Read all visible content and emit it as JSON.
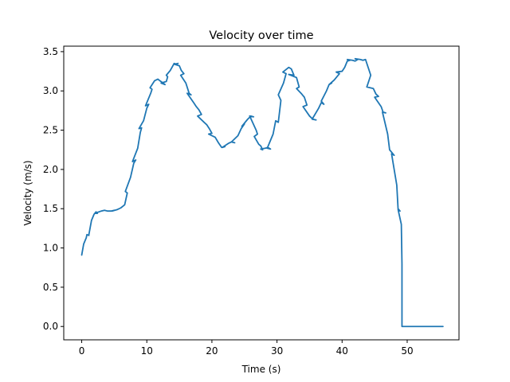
{
  "chart_data": {
    "type": "line",
    "title": "Velocity over time",
    "xlabel": "Time (s)",
    "ylabel": "Velocity (m/s)",
    "xlim": [
      -2.76,
      57.96
    ],
    "ylim": [
      -0.17,
      3.57
    ],
    "xticks": [
      0,
      10,
      20,
      30,
      40,
      50
    ],
    "xtick_labels": [
      "0",
      "10",
      "20",
      "30",
      "40",
      "50"
    ],
    "yticks": [
      0.0,
      0.5,
      1.0,
      1.5,
      2.0,
      2.5,
      3.0,
      3.5
    ],
    "ytick_labels": [
      "0.0",
      "0.5",
      "1.0",
      "1.5",
      "2.0",
      "2.5",
      "3.0",
      "3.5"
    ],
    "grid": false,
    "legend": false,
    "line_color": "#1f77b4",
    "series": [
      {
        "x": [
          0.0,
          0.3,
          0.7,
          0.8,
          1.1,
          1.1,
          1.5,
          1.9,
          2.2,
          2.4,
          2.0,
          3.0,
          3.5,
          4.0,
          4.5,
          5.0,
          4.7,
          5.5,
          6.0,
          6.3,
          6.6,
          7.0,
          6.7,
          7.5,
          8.0,
          8.3,
          7.8,
          8.6,
          9.0,
          9.2,
          8.8,
          9.5,
          10.0,
          10.3,
          9.8,
          10.6,
          10.8,
          10.5,
          11.2,
          11.7,
          12.0,
          12.5,
          12.8,
          12.2,
          13.0,
          13.2,
          13.0,
          13.6,
          14.0,
          14.2,
          14.5,
          14.8,
          14.2,
          15.0,
          15.3,
          15.7,
          15.2,
          16.0,
          16.5,
          16.8,
          16.2,
          17.2,
          17.6,
          18.0,
          18.4,
          17.8,
          18.8,
          19.2,
          19.6,
          20.0,
          19.5,
          20.5,
          21.0,
          21.5,
          22.0,
          21.6,
          22.5,
          23.0,
          23.5,
          23.0,
          24.0,
          24.5,
          25.0,
          24.6,
          25.5,
          26.0,
          26.4,
          25.8,
          26.8,
          27.0,
          26.5,
          27.2,
          27.5,
          27.8,
          27.5,
          28.2,
          28.6,
          29.0,
          28.5,
          29.4,
          29.8,
          30.2,
          30.6,
          30.2,
          31.0,
          31.4,
          30.9,
          31.8,
          32.2,
          32.6,
          31.8,
          33.0,
          33.4,
          33.0,
          33.8,
          34.2,
          34.6,
          34.0,
          35.0,
          35.5,
          36.0,
          35.4,
          36.4,
          36.8,
          37.2,
          36.8,
          37.6,
          38.0,
          38.4,
          38.0,
          38.8,
          39.2,
          39.6,
          39.1,
          40.0,
          40.4,
          40.8,
          41.2,
          40.8,
          41.6,
          42.0,
          42.4,
          42.0,
          42.8,
          43.2,
          43.6,
          44.0,
          44.4,
          43.8,
          44.8,
          45.2,
          45.6,
          45.0,
          46.0,
          46.3,
          46.7,
          46.2,
          47.0,
          47.3,
          47.6,
          48.0,
          47.6,
          48.4,
          48.6,
          48.9,
          48.6,
          49.1,
          49.2,
          49.2,
          49.3,
          50.0,
          51.0,
          52.0,
          53.0,
          54.0,
          55.0,
          55.5,
          55.2,
          55.3
        ],
        "y": [
          0.91,
          1.05,
          1.13,
          1.17,
          1.16,
          1.17,
          1.35,
          1.43,
          1.46,
          1.44,
          1.44,
          1.47,
          1.48,
          1.47,
          1.47,
          1.48,
          1.47,
          1.49,
          1.51,
          1.53,
          1.55,
          1.7,
          1.72,
          1.9,
          2.08,
          2.12,
          2.1,
          2.27,
          2.47,
          2.53,
          2.52,
          2.62,
          2.78,
          2.83,
          2.81,
          2.97,
          3.02,
          3.04,
          3.13,
          3.15,
          3.13,
          3.1,
          3.08,
          3.1,
          3.12,
          3.18,
          3.2,
          3.26,
          3.32,
          3.35,
          3.34,
          3.35,
          3.34,
          3.32,
          3.26,
          3.22,
          3.2,
          3.1,
          2.97,
          2.95,
          2.97,
          2.85,
          2.8,
          2.76,
          2.7,
          2.68,
          2.6,
          2.57,
          2.52,
          2.46,
          2.45,
          2.41,
          2.34,
          2.28,
          2.29,
          2.28,
          2.33,
          2.35,
          2.34,
          2.35,
          2.43,
          2.52,
          2.58,
          2.55,
          2.64,
          2.68,
          2.67,
          2.68,
          2.5,
          2.45,
          2.42,
          2.32,
          2.3,
          2.25,
          2.26,
          2.27,
          2.28,
          2.26,
          2.27,
          2.45,
          2.62,
          2.6,
          2.88,
          2.95,
          3.1,
          3.22,
          3.24,
          3.3,
          3.28,
          3.2,
          3.21,
          3.17,
          3.05,
          3.03,
          2.96,
          2.92,
          2.82,
          2.8,
          2.68,
          2.64,
          2.63,
          2.64,
          2.78,
          2.85,
          2.83,
          2.87,
          3.0,
          3.08,
          3.1,
          3.08,
          3.14,
          3.18,
          3.22,
          3.24,
          3.25,
          3.3,
          3.38,
          3.39,
          3.4,
          3.39,
          3.38,
          3.4,
          3.41,
          3.4,
          3.39,
          3.4,
          3.3,
          3.2,
          3.05,
          3.03,
          2.96,
          2.93,
          2.92,
          2.8,
          2.73,
          2.72,
          2.73,
          2.45,
          2.25,
          2.22,
          2.18,
          2.2,
          1.8,
          1.5,
          1.47,
          1.49,
          1.3,
          0.8,
          0.0,
          0.0,
          0.0,
          0.0,
          0.0,
          0.0,
          0.0,
          0.0,
          0.0,
          0.0,
          0.0
        ]
      }
    ]
  }
}
